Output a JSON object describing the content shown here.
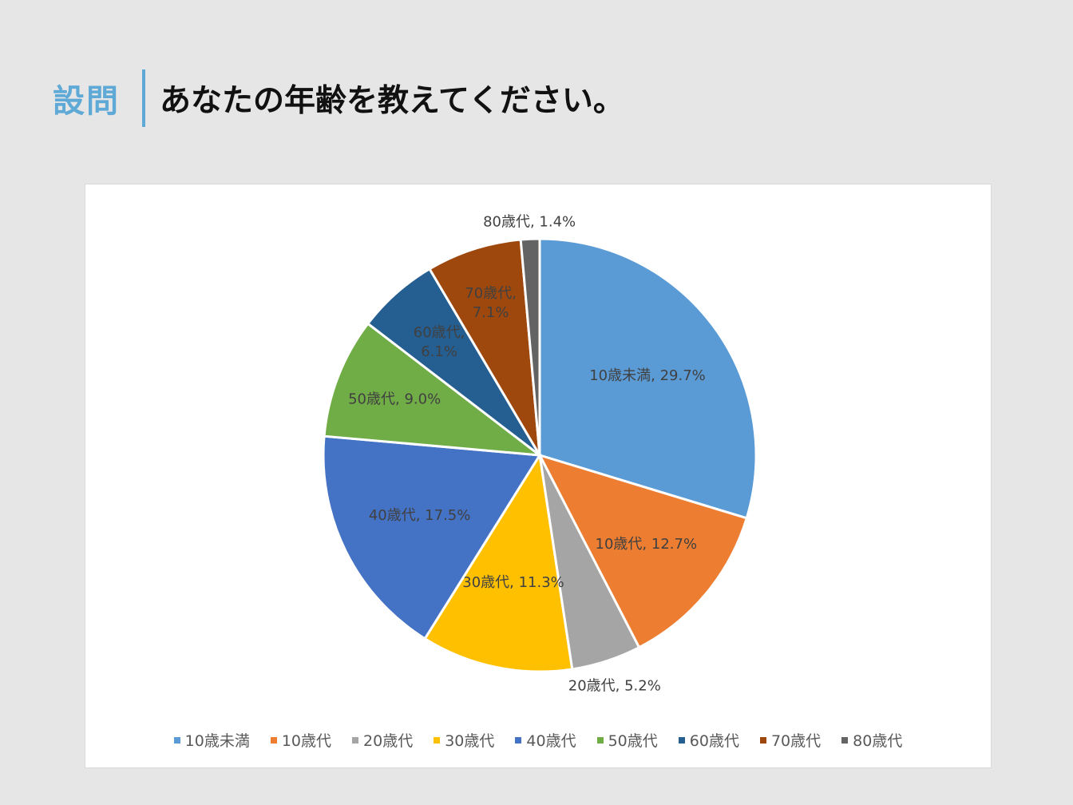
{
  "header": {
    "tag": "設問",
    "title": "あなたの年齢を教えてください。"
  },
  "chart_data": {
    "type": "pie",
    "categories": [
      "10歳未満",
      "10歳代",
      "20歳代",
      "30歳代",
      "40歳代",
      "50歳代",
      "60歳代",
      "70歳代",
      "80歳代"
    ],
    "values": [
      29.7,
      12.7,
      5.2,
      11.3,
      17.5,
      9.0,
      6.1,
      7.1,
      1.4
    ],
    "data_labels": [
      "10歳未満, 29.7%",
      "10歳代, 12.7%",
      "20歳代, 5.2%",
      "30歳代, 11.3%",
      "40歳代, 17.5%",
      "50歳代, 9.0%",
      "60歳代, 6.1%",
      "70歳代, 7.1%",
      "80歳代, 1.4%"
    ],
    "colors": [
      "#5b9bd5",
      "#ed7d31",
      "#a5a5a5",
      "#ffc000",
      "#4472c4",
      "#70ad47",
      "#255e91",
      "#9e480e",
      "#636363"
    ],
    "start_angle": "12 o'clock, clockwise",
    "legend_position": "bottom"
  }
}
